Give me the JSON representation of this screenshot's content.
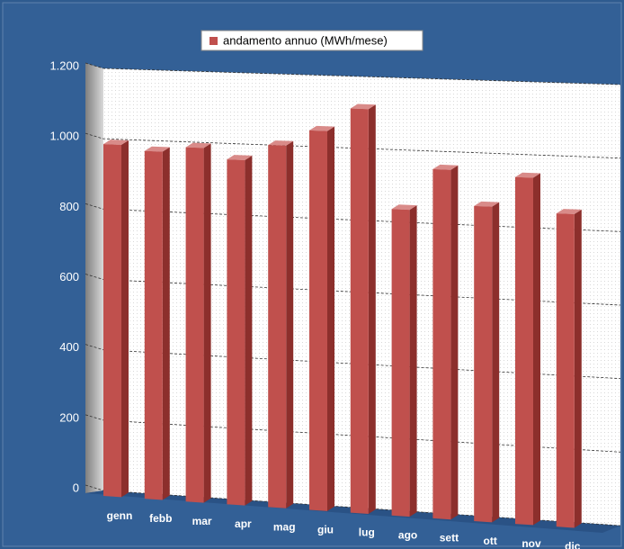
{
  "chart_data": {
    "type": "bar3d",
    "legend_label": "andamento annuo (MWh/mese)",
    "categories": [
      "genn",
      "febb",
      "mar",
      "apr",
      "mag",
      "giu",
      "lug",
      "ago",
      "sett",
      "ott",
      "nov",
      "dic"
    ],
    "values": [
      1000,
      985,
      1000,
      970,
      1015,
      1060,
      1125,
      850,
      965,
      868,
      952,
      857
    ],
    "color": "#c0504d",
    "ylim": [
      0,
      1200
    ],
    "yticks": [
      0,
      200,
      400,
      600,
      800,
      {
        "value": 1000,
        "label": "1.000"
      },
      {
        "value": 1200,
        "label": "1.200"
      }
    ],
    "grid": true
  }
}
